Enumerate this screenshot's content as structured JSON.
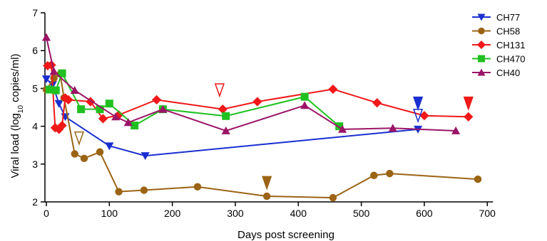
{
  "chart_data": {
    "type": "line",
    "xlabel": "Days post screening",
    "ylabel_main": "Viral load (log",
    "ylabel_sub": "10",
    "ylabel_tail": " copies/ml)",
    "xlim": [
      0,
      700
    ],
    "ylim": [
      2,
      7
    ],
    "x_ticks": [
      0,
      100,
      200,
      300,
      400,
      500,
      600,
      700
    ],
    "y_ticks": [
      2,
      3,
      4,
      5,
      6,
      7
    ],
    "grid": false,
    "legend_position": "top-right",
    "series": [
      {
        "name": "CH77",
        "color": "#1a2fd0",
        "marker": "triangle-down",
        "x": [
          0,
          10,
          20,
          30,
          100,
          157,
          590
        ],
        "y": [
          5.25,
          5.1,
          4.6,
          4.25,
          3.48,
          3.22,
          3.92
        ]
      },
      {
        "name": "CH58",
        "color": "#9b6414",
        "marker": "circle",
        "x": [
          0,
          12,
          22,
          28,
          45,
          60,
          85,
          115,
          155,
          240,
          350,
          455,
          520,
          545,
          685
        ],
        "y": [
          4.97,
          5.27,
          5.38,
          4.75,
          3.27,
          3.15,
          3.32,
          2.27,
          2.31,
          2.4,
          2.15,
          2.11,
          2.7,
          2.75,
          2.6
        ]
      },
      {
        "name": "CH131",
        "color": "#f01818",
        "marker": "diamond",
        "x": [
          2,
          8,
          14,
          20,
          25,
          30,
          35,
          70,
          90,
          115,
          175,
          280,
          335,
          455,
          525,
          600,
          670
        ],
        "y": [
          5.6,
          5.62,
          3.96,
          3.92,
          4.02,
          4.75,
          4.7,
          4.65,
          4.2,
          4.3,
          4.7,
          4.45,
          4.65,
          4.98,
          4.62,
          4.28,
          4.25
        ]
      },
      {
        "name": "CH470",
        "color": "#20c020",
        "marker": "square",
        "x": [
          5,
          15,
          25,
          55,
          85,
          100,
          140,
          185,
          285,
          410,
          465
        ],
        "y": [
          4.97,
          4.95,
          5.4,
          4.45,
          4.45,
          4.6,
          4.02,
          4.45,
          4.27,
          4.78,
          4.0
        ]
      },
      {
        "name": "CH40",
        "color": "#9b1466",
        "marker": "triangle-up",
        "x": [
          0,
          12,
          45,
          110,
          130,
          185,
          285,
          410,
          470,
          550,
          650
        ],
        "y": [
          6.35,
          5.45,
          4.95,
          4.25,
          4.1,
          4.45,
          3.88,
          4.55,
          3.92,
          3.95,
          3.88
        ]
      }
    ],
    "annotations": [
      {
        "kind": "arrow-filled",
        "series": "CH77",
        "x": 590,
        "y": 4.6
      },
      {
        "kind": "arrow-open",
        "series": "CH77",
        "x": 590,
        "y": 4.28
      },
      {
        "kind": "arrow-open",
        "series": "CH131",
        "x": 275,
        "y": 4.95
      },
      {
        "kind": "arrow-filled",
        "series": "CH131",
        "x": 670,
        "y": 4.6
      },
      {
        "kind": "arrow-open",
        "series": "CH58",
        "x": 52,
        "y": 3.68
      },
      {
        "kind": "arrow-filled",
        "series": "CH58",
        "x": 350,
        "y": 2.5
      }
    ]
  }
}
